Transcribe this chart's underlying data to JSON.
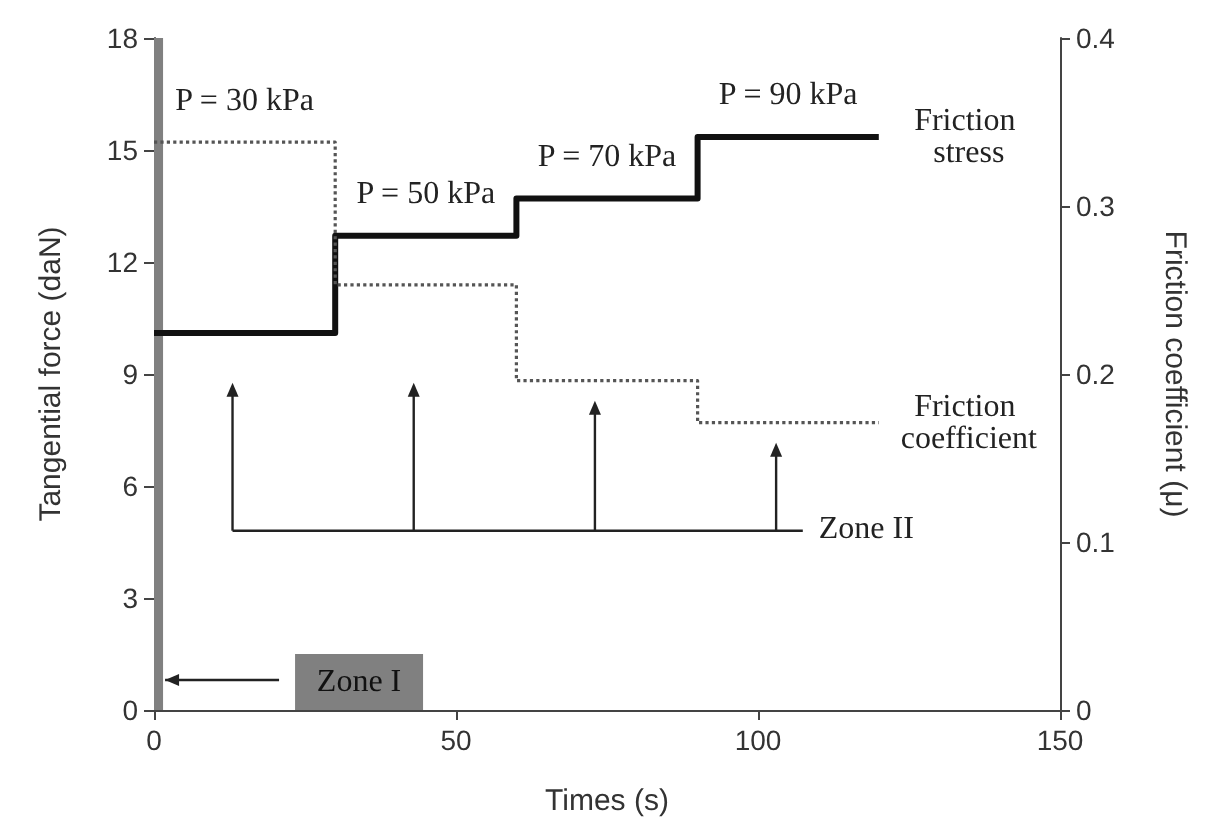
{
  "chart_data": {
    "type": "step",
    "xlabel": "Times (s)",
    "ylabel": "Tangential force (daN)",
    "y2label": "Friction coefficient (μ)",
    "xlim": [
      0,
      150
    ],
    "xticks": [
      0,
      50,
      100,
      150
    ],
    "ylim": [
      0,
      18
    ],
    "yticks": [
      0,
      3,
      6,
      9,
      12,
      15,
      18
    ],
    "y2lim": [
      0,
      0.4
    ],
    "y2ticks": [
      0,
      0.1,
      0.2,
      0.3,
      0.4
    ],
    "grid": false,
    "legend": false,
    "marker": "none",
    "series": [
      {
        "name": "Friction stress",
        "color": "#111111",
        "line_style": "solid",
        "x": [
          0,
          30,
          60,
          90,
          120
        ],
        "values": [
          10.1,
          12.7,
          13.7,
          15.35,
          15.35
        ]
      },
      {
        "name": "Friction coefficient",
        "color": "#555555",
        "line_style": "dotted",
        "axis": "y2",
        "x": [
          0,
          30,
          60,
          90,
          120
        ],
        "values": [
          0.338,
          0.253,
          0.196,
          0.171,
          0.171
        ]
      }
    ],
    "bands": [
      {
        "axis": "x",
        "from": 0,
        "to": 1.5,
        "label": "Zone I",
        "color": "#808080"
      }
    ],
    "annotations": [
      "P = 30 kPa",
      "P = 50 kPa",
      "P = 70 kPa",
      "P = 90 kPa",
      "Zone II"
    ]
  }
}
